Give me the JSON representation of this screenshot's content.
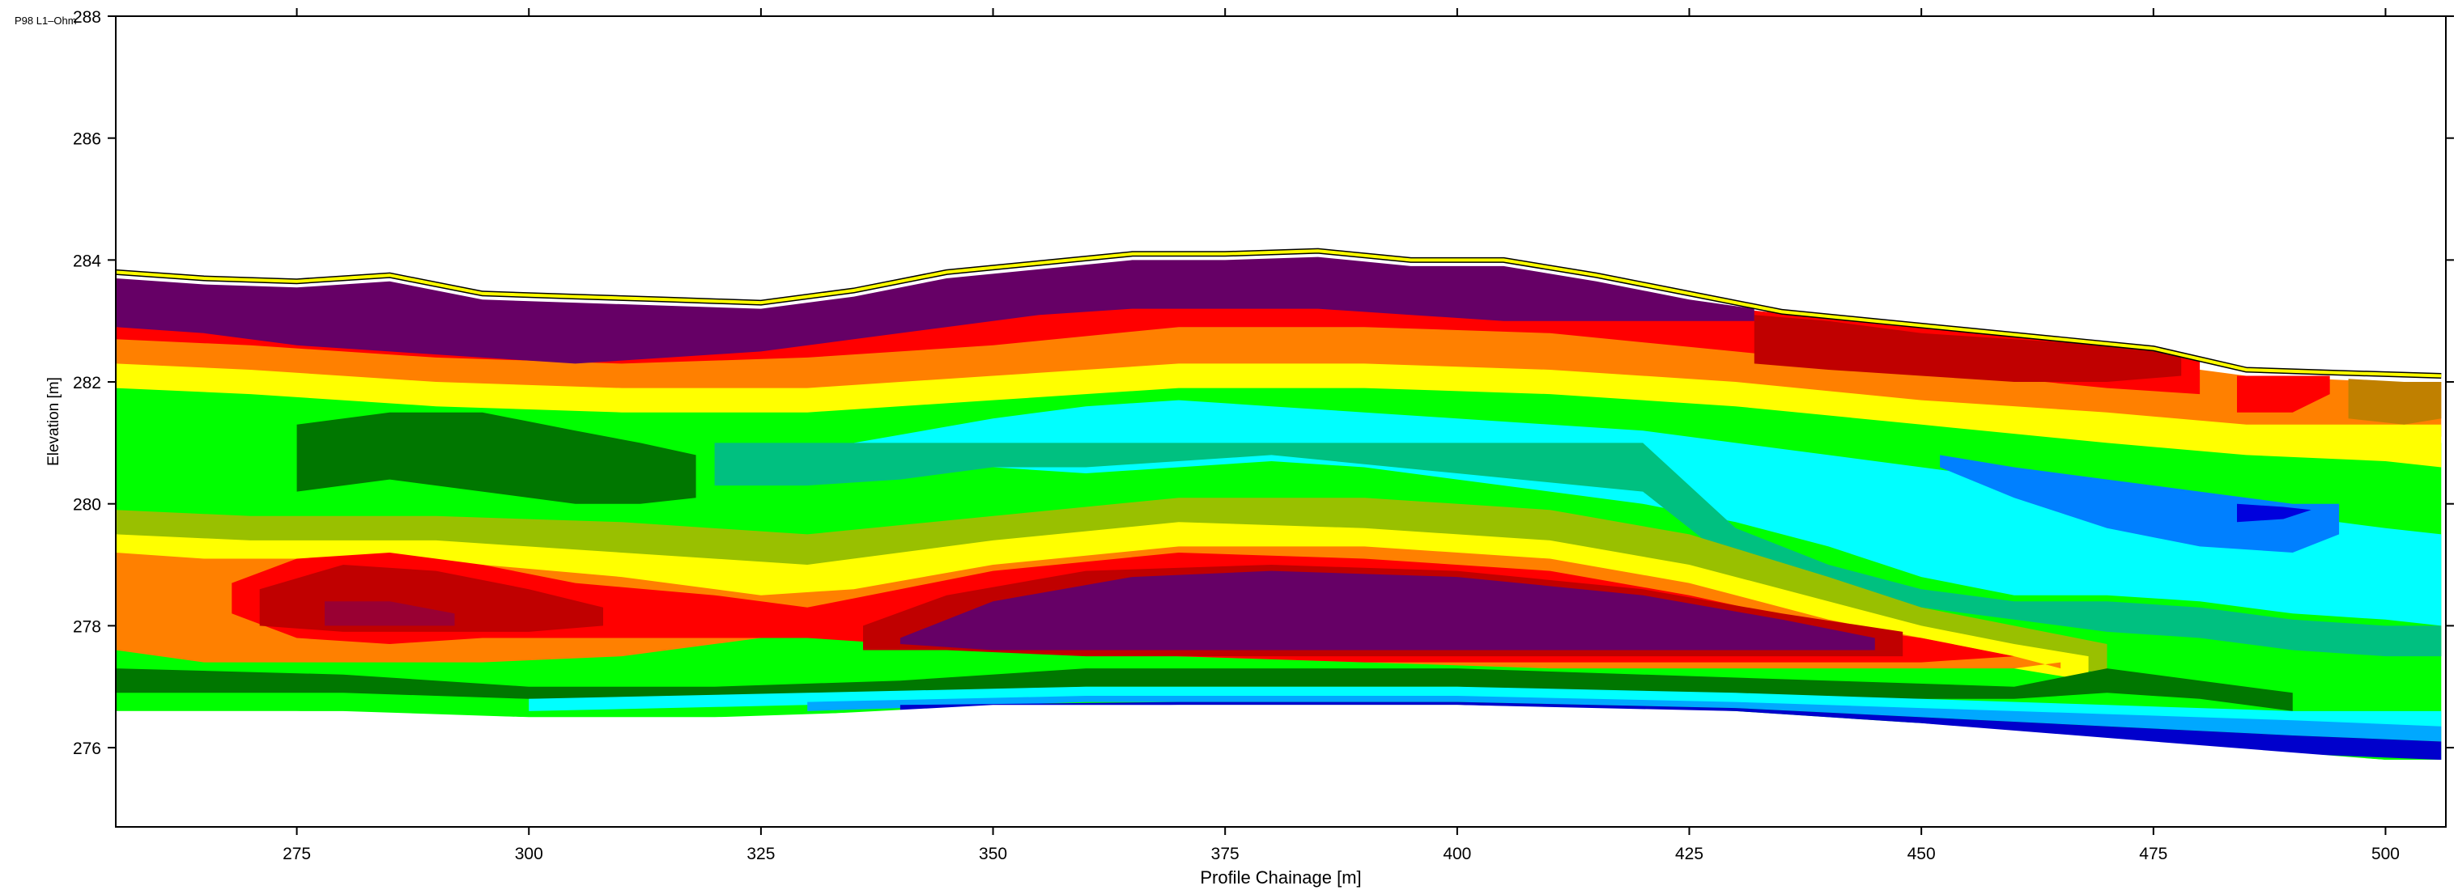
{
  "page": {
    "corner_label": "P98 L1–Ohm"
  },
  "chart_data": {
    "type": "heatmap",
    "subtype": "filled-contour-section",
    "title": "",
    "xlabel": "Profile Chainage [m]",
    "ylabel": "Elevation [m]",
    "xlim": [
      255.5,
      506.5
    ],
    "ylim": [
      274.7,
      288
    ],
    "x_ticks": [
      275,
      300,
      325,
      350,
      375,
      400,
      425,
      450,
      475,
      500
    ],
    "y_ticks": [
      276,
      278,
      280,
      282,
      284,
      286,
      288
    ],
    "grid": false,
    "legend": "none",
    "palette": [
      "#0000cc",
      "#0055ff",
      "#00a8ff",
      "#00ffff",
      "#00c080",
      "#00ff00",
      "#007700",
      "#99c000",
      "#ffff00",
      "#c08000",
      "#ff8000",
      "#ff0000",
      "#c00000",
      "#990033",
      "#660066"
    ],
    "topography": [
      [
        255.5,
        283.8
      ],
      [
        265,
        283.7
      ],
      [
        275,
        283.65
      ],
      [
        285,
        283.75
      ],
      [
        295,
        283.45
      ],
      [
        305,
        283.4
      ],
      [
        315,
        283.35
      ],
      [
        325,
        283.3
      ],
      [
        335,
        283.5
      ],
      [
        345,
        283.8
      ],
      [
        355,
        283.95
      ],
      [
        365,
        284.1
      ],
      [
        375,
        284.1
      ],
      [
        385,
        284.15
      ],
      [
        395,
        284.0
      ],
      [
        405,
        284.0
      ],
      [
        415,
        283.75
      ],
      [
        425,
        283.45
      ],
      [
        435,
        283.15
      ],
      [
        445,
        283.0
      ],
      [
        455,
        282.85
      ],
      [
        465,
        282.7
      ],
      [
        475,
        282.55
      ],
      [
        485,
        282.2
      ],
      [
        495,
        282.15
      ],
      [
        506,
        282.1
      ]
    ],
    "bottom": [
      [
        255.5,
        276.6
      ],
      [
        275,
        276.6
      ],
      [
        300,
        276.5
      ],
      [
        325,
        276.5
      ],
      [
        350,
        276.7
      ],
      [
        375,
        276.7
      ],
      [
        400,
        276.7
      ],
      [
        425,
        276.6
      ],
      [
        450,
        276.4
      ],
      [
        475,
        276.1
      ],
      [
        500,
        275.8
      ],
      [
        506,
        275.8
      ]
    ],
    "regions": [
      {
        "color": "#00ff00",
        "x": [
          255.5,
          262,
          270,
          280,
          290,
          300,
          310,
          320,
          330,
          340,
          350,
          360,
          370,
          380,
          390,
          400,
          410,
          420,
          430,
          440,
          450,
          460,
          470,
          480,
          490,
          500,
          506
        ],
        "top": [
          282.6,
          282.5,
          282.4,
          282.2,
          282.0,
          281.9,
          281.9,
          281.9,
          281.9,
          282.0,
          282.2,
          282.4,
          282.6,
          282.6,
          282.6,
          282.5,
          282.4,
          282.3,
          282.2,
          282.1,
          281.9,
          281.7,
          281.5,
          281.3,
          281.1,
          281.0,
          281.0
        ],
        "bottom": [
          276.6,
          276.6,
          276.6,
          276.6,
          276.55,
          276.5,
          276.5,
          276.5,
          276.55,
          276.6,
          276.7,
          276.7,
          276.7,
          276.7,
          276.7,
          276.7,
          276.7,
          276.65,
          276.6,
          276.5,
          276.4,
          276.3,
          276.2,
          276.0,
          275.9,
          275.8,
          275.8
        ]
      },
      {
        "color": "#00ffff",
        "x": [
          335,
          350,
          360,
          370,
          380,
          390,
          400,
          410,
          420,
          430,
          440,
          450,
          460,
          470,
          480,
          490,
          500,
          506
        ],
        "top": [
          281.0,
          281.4,
          281.6,
          281.7,
          281.6,
          281.5,
          281.4,
          281.3,
          281.2,
          281.0,
          280.8,
          280.6,
          280.4,
          280.2,
          280.0,
          279.8,
          279.6,
          279.5
        ],
        "bottom": [
          281.0,
          280.6,
          280.5,
          280.6,
          280.7,
          280.6,
          280.4,
          280.2,
          280.0,
          279.7,
          279.3,
          278.8,
          278.5,
          278.5,
          278.4,
          278.2,
          278.1,
          278.0
        ]
      },
      {
        "color": "#00c080",
        "x": [
          300,
          310,
          320,
          330,
          340,
          350,
          360,
          380,
          400,
          420,
          430,
          440,
          450,
          460,
          470,
          480,
          490,
          500,
          506
        ],
        "top": [
          281.0,
          281.1,
          281.0,
          281.0,
          281.0,
          281.0,
          281.0,
          281.0,
          281.0,
          281.0,
          279.6,
          279.0,
          278.6,
          278.4,
          278.4,
          278.3,
          278.1,
          278.0,
          278.0
        ],
        "bottom": [
          280.4,
          280.3,
          280.3,
          280.3,
          280.4,
          280.6,
          280.6,
          280.8,
          280.5,
          280.2,
          279.0,
          278.7,
          278.3,
          278.1,
          277.9,
          277.8,
          277.6,
          277.5,
          277.5
        ]
      },
      {
        "color": "#0080ff",
        "x": [
          452,
          460,
          470,
          480,
          490,
          495
        ],
        "top": [
          280.8,
          280.6,
          280.4,
          280.2,
          280.0,
          280.0
        ],
        "bottom": [
          280.6,
          280.1,
          279.6,
          279.3,
          279.2,
          279.5
        ]
      },
      {
        "color": "#0000dd",
        "x": [
          484,
          489,
          492
        ],
        "top": [
          280.0,
          279.95,
          279.9
        ],
        "bottom": [
          279.7,
          279.75,
          279.9
        ]
      },
      {
        "color": "#00ff00",
        "x": [
          255.5,
          265,
          275,
          285,
          300,
          310,
          320
        ],
        "top": [
          281.6,
          281.6,
          281.5,
          281.3,
          281.3,
          281.2,
          281.0
        ],
        "bottom": [
          280.0,
          279.9,
          280.0,
          280.3,
          280.3,
          280.2,
          280.1
        ]
      },
      {
        "color": "#007700",
        "x": [
          275,
          285,
          295,
          305,
          312,
          318
        ],
        "top": [
          281.3,
          281.5,
          281.5,
          281.2,
          281.0,
          280.8
        ],
        "bottom": [
          280.2,
          280.4,
          280.2,
          280.0,
          280.0,
          280.1
        ]
      },
      {
        "color": "#99c000",
        "x": [
          255.5,
          270,
          290,
          310,
          330,
          350,
          370,
          390,
          410,
          425,
          440,
          450,
          460,
          470
        ],
        "top": [
          279.9,
          279.8,
          279.8,
          279.7,
          279.5,
          279.8,
          280.1,
          280.1,
          279.9,
          279.5,
          278.8,
          278.3,
          278.0,
          277.7
        ],
        "bottom": [
          279.4,
          279.3,
          279.3,
          279.1,
          278.9,
          279.2,
          279.5,
          279.4,
          279.2,
          278.9,
          278.2,
          277.8,
          277.5,
          277.2
        ]
      },
      {
        "color": "#ffff00",
        "x": [
          255.5,
          270,
          290,
          310,
          330,
          350,
          370,
          390,
          410,
          425,
          440,
          450,
          460,
          468
        ],
        "top": [
          279.5,
          279.4,
          279.4,
          279.2,
          279.0,
          279.4,
          279.7,
          279.6,
          279.4,
          279.0,
          278.4,
          278.0,
          277.7,
          277.5
        ],
        "bottom": [
          279.0,
          278.9,
          278.9,
          278.7,
          278.4,
          278.9,
          279.2,
          279.1,
          278.9,
          278.5,
          277.9,
          277.6,
          277.3,
          277.1
        ]
      },
      {
        "color": "#ff8000",
        "x": [
          255.5,
          265,
          280,
          295,
          310,
          325,
          335,
          350,
          370,
          390,
          410,
          425,
          440,
          450,
          460,
          465
        ],
        "top": [
          279.2,
          279.1,
          279.1,
          279.0,
          278.8,
          278.5,
          278.6,
          279.0,
          279.3,
          279.3,
          279.1,
          278.7,
          278.1,
          277.8,
          277.5,
          277.3
        ],
        "bottom": [
          277.6,
          277.4,
          277.4,
          277.4,
          277.5,
          277.8,
          277.9,
          277.6,
          277.5,
          277.4,
          277.3,
          277.3,
          277.3,
          277.3,
          277.3,
          277.4
        ]
      },
      {
        "color": "#ff0000",
        "x": [
          268,
          275,
          285,
          295,
          305,
          320,
          330,
          340,
          350,
          370,
          390,
          410,
          425,
          440,
          450,
          460
        ],
        "top": [
          278.7,
          279.1,
          279.2,
          279.0,
          278.7,
          278.5,
          278.3,
          278.6,
          278.9,
          279.2,
          279.1,
          278.9,
          278.5,
          278.0,
          277.8,
          277.5
        ],
        "bottom": [
          278.2,
          277.8,
          277.7,
          277.8,
          277.8,
          277.8,
          277.8,
          277.7,
          277.6,
          277.5,
          277.4,
          277.4,
          277.4,
          277.4,
          277.4,
          277.5
        ]
      },
      {
        "color": "#c00000",
        "x": [
          271,
          280,
          290,
          300,
          308
        ],
        "top": [
          278.6,
          279.0,
          278.9,
          278.6,
          278.3
        ],
        "bottom": [
          278.0,
          277.9,
          277.9,
          277.9,
          278.0
        ]
      },
      {
        "color": "#990033",
        "x": [
          278,
          285,
          292
        ],
        "top": [
          278.4,
          278.4,
          278.2
        ],
        "bottom": [
          278.0,
          278.0,
          278.0
        ]
      },
      {
        "color": "#c00000",
        "x": [
          336,
          345,
          360,
          380,
          400,
          420,
          435,
          448
        ],
        "top": [
          278.0,
          278.5,
          278.9,
          279.0,
          278.9,
          278.6,
          278.2,
          277.9
        ],
        "bottom": [
          277.6,
          277.6,
          277.5,
          277.5,
          277.5,
          277.5,
          277.5,
          277.5
        ]
      },
      {
        "color": "#660066",
        "x": [
          340,
          350,
          365,
          380,
          400,
          420,
          435,
          445
        ],
        "top": [
          277.8,
          278.4,
          278.8,
          278.9,
          278.8,
          278.5,
          278.1,
          277.8
        ],
        "bottom": [
          277.7,
          277.6,
          277.6,
          277.6,
          277.6,
          277.6,
          277.6,
          277.6
        ]
      },
      {
        "color": "#007700",
        "x": [
          255.5,
          280,
          300,
          320,
          340,
          360,
          380,
          400,
          420,
          440,
          460,
          470,
          480,
          490
        ],
        "top": [
          277.3,
          277.2,
          277.0,
          277.0,
          277.1,
          277.3,
          277.3,
          277.3,
          277.2,
          277.1,
          277.0,
          277.3,
          277.1,
          276.9
        ],
        "bottom": [
          276.9,
          276.9,
          276.8,
          276.8,
          276.9,
          277.0,
          277.0,
          277.0,
          276.9,
          276.8,
          276.8,
          276.9,
          276.8,
          276.6
        ]
      },
      {
        "color": "#00ffff",
        "x": [
          300,
          330,
          360,
          400,
          430,
          450,
          470,
          490,
          506
        ],
        "top": [
          276.8,
          276.9,
          277.0,
          277.0,
          276.9,
          276.8,
          276.7,
          276.6,
          276.6
        ],
        "bottom": [
          276.6,
          276.7,
          276.8,
          276.8,
          276.7,
          276.6,
          276.5,
          276.4,
          276.3
        ]
      },
      {
        "color": "#00a8ff",
        "x": [
          330,
          360,
          400,
          430,
          450,
          470,
          490,
          506
        ],
        "top": [
          276.75,
          276.85,
          276.85,
          276.75,
          276.65,
          276.55,
          276.45,
          276.35
        ],
        "bottom": [
          276.6,
          276.75,
          276.75,
          276.65,
          276.5,
          276.35,
          276.2,
          276.1
        ]
      },
      {
        "color": "#0000cc",
        "x": [
          340,
          370,
          400,
          430,
          450,
          470,
          490,
          506
        ],
        "top": [
          276.7,
          276.75,
          276.75,
          276.65,
          276.5,
          276.35,
          276.2,
          276.1
        ],
        "bottom": [
          276.6,
          276.7,
          276.7,
          276.6,
          276.4,
          276.1,
          275.9,
          275.8
        ]
      },
      {
        "color": "#ff8000",
        "x": [
          255.5,
          270,
          290,
          310,
          330,
          350,
          370,
          390,
          410,
          430,
          450,
          470,
          485,
          500,
          506
        ],
        "top": [
          283.2,
          283.1,
          283.0,
          282.9,
          283.0,
          283.2,
          283.4,
          283.5,
          283.4,
          283.1,
          282.7,
          282.4,
          282.1,
          282.0,
          282.0
        ],
        "bottom": [
          282.2,
          282.1,
          281.9,
          281.8,
          281.8,
          282.0,
          282.2,
          282.2,
          282.1,
          281.9,
          281.6,
          281.3,
          281.1,
          281.1,
          281.1
        ]
      },
      {
        "color": "#ffff00",
        "x": [
          255.5,
          270,
          290,
          310,
          330,
          350,
          370,
          390,
          410,
          430,
          450,
          470,
          485,
          500,
          506
        ],
        "top": [
          282.3,
          282.2,
          282.0,
          281.9,
          281.9,
          282.1,
          282.3,
          282.3,
          282.2,
          282.0,
          281.7,
          281.5,
          281.3,
          281.3,
          281.3
        ],
        "bottom": [
          281.9,
          281.8,
          281.6,
          281.5,
          281.5,
          281.7,
          281.9,
          281.9,
          281.8,
          281.6,
          281.3,
          281.0,
          280.8,
          280.7,
          280.6
        ]
      },
      {
        "color": "#ff0000",
        "x": [
          255.5,
          270,
          290,
          310,
          330,
          350,
          370,
          390,
          410,
          430,
          450,
          470,
          480
        ],
        "top": [
          283.4,
          283.3,
          283.1,
          283.0,
          283.1,
          283.4,
          283.7,
          283.7,
          283.6,
          283.2,
          282.9,
          282.6,
          282.4
        ],
        "bottom": [
          282.7,
          282.6,
          282.4,
          282.3,
          282.4,
          282.6,
          282.9,
          282.9,
          282.8,
          282.5,
          282.2,
          281.9,
          281.8
        ]
      },
      {
        "color": "#660066",
        "x": [
          255.5,
          265,
          275,
          285,
          295,
          305,
          315,
          325,
          335,
          345,
          355,
          365,
          375,
          385,
          395,
          405,
          415,
          425,
          432
        ],
        "top": [
          283.7,
          283.6,
          283.55,
          283.65,
          283.35,
          283.3,
          283.25,
          283.2,
          283.4,
          283.7,
          283.85,
          284.0,
          284.0,
          284.05,
          283.9,
          283.9,
          283.65,
          283.35,
          283.2
        ],
        "bottom": [
          282.9,
          282.8,
          282.6,
          282.5,
          282.4,
          282.3,
          282.4,
          282.5,
          282.7,
          282.9,
          283.1,
          283.2,
          283.2,
          283.2,
          283.1,
          283.0,
          283.0,
          283.0,
          283.0
        ]
      },
      {
        "color": "#c00000",
        "x": [
          432,
          440,
          450,
          460,
          470,
          478
        ],
        "top": [
          283.1,
          283.0,
          282.8,
          282.7,
          282.6,
          282.5
        ],
        "bottom": [
          282.3,
          282.2,
          282.1,
          282.0,
          282.0,
          282.1
        ]
      },
      {
        "color": "#ff0000",
        "x": [
          484,
          490,
          494
        ],
        "top": [
          282.1,
          282.1,
          282.1
        ],
        "bottom": [
          281.5,
          281.5,
          281.8
        ]
      },
      {
        "color": "#c08000",
        "x": [
          496,
          502,
          506
        ],
        "top": [
          282.05,
          282.0,
          282.0
        ],
        "bottom": [
          281.4,
          281.3,
          281.4
        ]
      }
    ]
  }
}
